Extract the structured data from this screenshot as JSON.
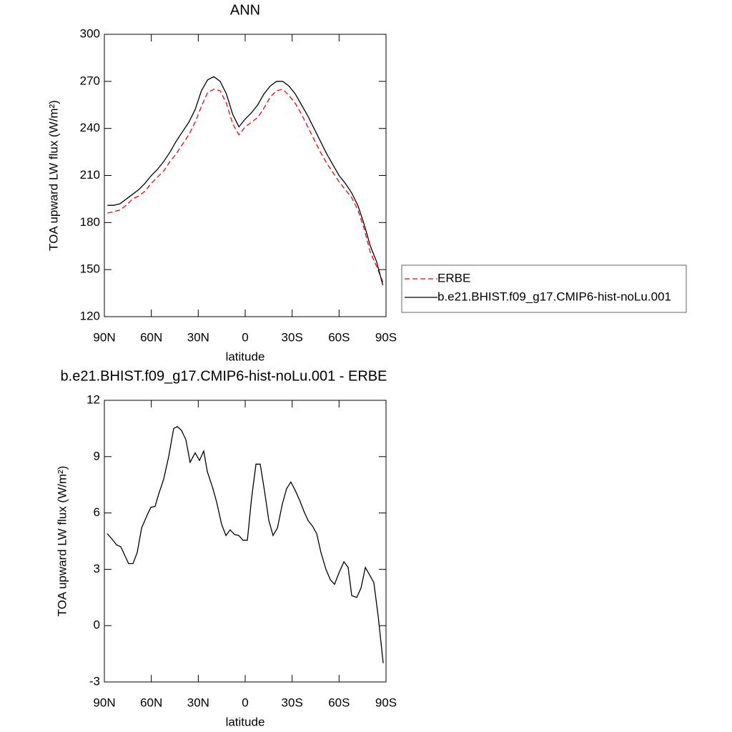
{
  "chart_data": [
    {
      "type": "line",
      "title": "ANN",
      "xlabel": "latitude",
      "ylabel": "TOA upward LW flux (W/m²)",
      "x": [
        88,
        84,
        80,
        76,
        72,
        68,
        64,
        60,
        56,
        52,
        48,
        44,
        40,
        36,
        32,
        28,
        24,
        20,
        16,
        12,
        8,
        4,
        0,
        -4,
        -8,
        -12,
        -16,
        -20,
        -24,
        -28,
        -32,
        -36,
        -40,
        -44,
        -48,
        -52,
        -56,
        -60,
        -64,
        -68,
        -72,
        -76,
        -80,
        -84,
        -88
      ],
      "series": [
        {
          "name": "ERBE",
          "color": "#ff0000",
          "style": "dashed",
          "values": [
            186,
            187,
            188,
            191,
            195,
            197,
            200,
            205,
            209,
            213,
            219,
            224,
            230,
            236,
            244,
            254,
            263,
            265,
            264,
            256,
            243,
            236,
            241,
            244,
            247,
            253,
            260,
            264,
            265,
            261,
            256,
            249,
            241,
            233,
            225,
            218,
            212,
            206,
            201,
            196,
            188,
            176,
            161,
            152,
            142
          ]
        },
        {
          "name": "b.e21.BHIST.f09_g17.CMIP6-hist-noLu.001",
          "color": "#000000",
          "style": "solid",
          "values": [
            191,
            191,
            192,
            195,
            198,
            201,
            205,
            210,
            214,
            219,
            225,
            232,
            238,
            244,
            252,
            264,
            271,
            273,
            270,
            262,
            249,
            241,
            246,
            250,
            255,
            262,
            267,
            270,
            270,
            267,
            262,
            255,
            248,
            240,
            232,
            224,
            217,
            210,
            205,
            199,
            191,
            179,
            165,
            155,
            140
          ]
        }
      ],
      "xlim": [
        90,
        -90
      ],
      "xticks": [
        {
          "value": 90,
          "label": "90N"
        },
        {
          "value": 60,
          "label": "60N"
        },
        {
          "value": 30,
          "label": "30N"
        },
        0,
        {
          "value": -30,
          "label": "30S"
        },
        {
          "value": -60,
          "label": "60S"
        },
        {
          "value": -90,
          "label": "90S"
        }
      ],
      "ylim": [
        120,
        300
      ],
      "yticks": [
        120,
        150,
        180,
        210,
        240,
        270,
        300
      ],
      "legend": "right"
    },
    {
      "type": "line",
      "title": "b.e21.BHIST.f09_g17.CMIP6-hist-noLu.001 - ERBE",
      "xlabel": "latitude",
      "ylabel": "TOA upward LW flux (W/m²)",
      "x": [
        88.2,
        85.0,
        82.2,
        79.5,
        74.5,
        71.7,
        69.0,
        66.2,
        62.6,
        60.3,
        57.6,
        55.3,
        52.1,
        48.9,
        45.7,
        43.4,
        40.7,
        37.9,
        35.2,
        32.0,
        29.2,
        26.5,
        24.2,
        21.0,
        18.3,
        15.1,
        12.3,
        9.6,
        6.8,
        4.1,
        1.4,
        -1.4,
        -4.1,
        -6.9,
        -9.6,
        -12.3,
        -15.1,
        -17.8,
        -20.6,
        -23.8,
        -26.5,
        -29.2,
        -32.0,
        -34.7,
        -37.5,
        -40.2,
        -43.0,
        -45.7,
        -48.4,
        -51.6,
        -54.4,
        -57.1,
        -59.9,
        -63.1,
        -65.8,
        -68.1,
        -71.3,
        -74.0,
        -76.8,
        -79.5,
        -82.2,
        -85.0,
        -88.2
      ],
      "values": [
        4.9,
        4.6,
        4.3,
        4.2,
        3.3,
        3.3,
        3.9,
        5.2,
        5.9,
        6.3,
        6.35,
        7.0,
        7.8,
        9.0,
        10.5,
        10.6,
        10.4,
        9.9,
        8.7,
        9.2,
        8.8,
        9.3,
        8.2,
        7.4,
        6.6,
        5.4,
        4.8,
        5.1,
        4.85,
        4.8,
        4.55,
        4.55,
        6.8,
        8.6,
        8.6,
        7.2,
        5.6,
        4.8,
        5.2,
        6.5,
        7.3,
        7.65,
        7.2,
        6.7,
        6.1,
        5.6,
        5.3,
        4.9,
        3.9,
        3.0,
        2.45,
        2.2,
        2.8,
        3.4,
        3.1,
        1.6,
        1.5,
        2.0,
        3.1,
        2.7,
        2.3,
        0.5,
        -2.0
      ],
      "color": "#000000",
      "style": "solid",
      "xlim": [
        90,
        -90
      ],
      "xticks": [
        {
          "value": 90,
          "label": "90N"
        },
        {
          "value": 60,
          "label": "60N"
        },
        {
          "value": 30,
          "label": "30N"
        },
        0,
        {
          "value": -30,
          "label": "30S"
        },
        {
          "value": -60,
          "label": "60S"
        },
        {
          "value": -90,
          "label": "90S"
        }
      ],
      "ylim": [
        -3,
        12
      ],
      "yticks": [
        -3,
        0,
        3,
        6,
        9,
        12
      ]
    }
  ]
}
